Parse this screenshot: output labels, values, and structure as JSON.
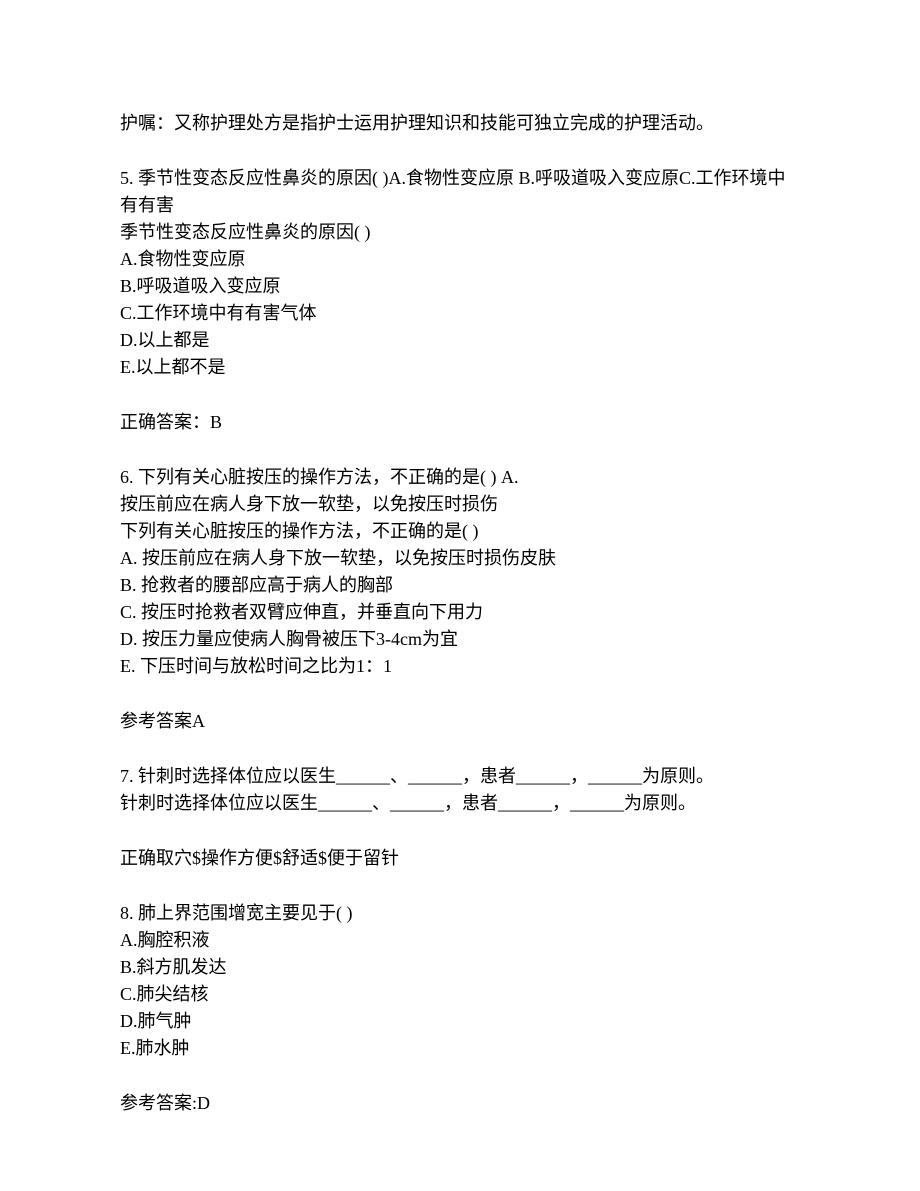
{
  "intro": "护嘱：又称护理处方是指护士运用护理知识和技能可独立完成的护理活动。",
  "q5": {
    "header": "5.  季节性变态反应性鼻炎的原因( )A.食物性变应原 B.呼吸道吸入变应原C.工作环境中有有害",
    "stem": "季节性变态反应性鼻炎的原因( )",
    "options": [
      "A.食物性变应原",
      "B.呼吸道吸入变应原",
      "C.工作环境中有有害气体",
      "D.以上都是",
      "E.以上都不是"
    ],
    "answer": "正确答案：B"
  },
  "q6": {
    "header_l1": "6.  下列有关心脏按压的操作方法，不正确的是( ) A. ",
    "header_l2": "按压前应在病人身下放一软垫，以免按压时损伤",
    "stem": "下列有关心脏按压的操作方法，不正确的是( )",
    "options": [
      "A.  按压前应在病人身下放一软垫，以免按压时损伤皮肤",
      "B.  抢救者的腰部应高于病人的胸部",
      "C.  按压时抢救者双臂应伸直，并垂直向下用力",
      "D.  按压力量应使病人胸骨被压下3-4cm为宜",
      "E.  下压时间与放松时间之比为1：1"
    ],
    "answer": "参考答案A"
  },
  "q7": {
    "line1": "7.  针刺时选择体位应以医生______、______，患者______，______为原则。",
    "line2": "针刺时选择体位应以医生______、______，患者______，______为原则。",
    "answer": "正确取穴$操作方便$舒适$便于留针"
  },
  "q8": {
    "stem": "8.  肺上界范围增宽主要见于( )",
    "options": [
      "A.胸腔积液",
      "B.斜方肌发达",
      "C.肺尖结核",
      "D.肺气肿",
      "E.肺水肿"
    ],
    "answer": "参考答案:D"
  }
}
